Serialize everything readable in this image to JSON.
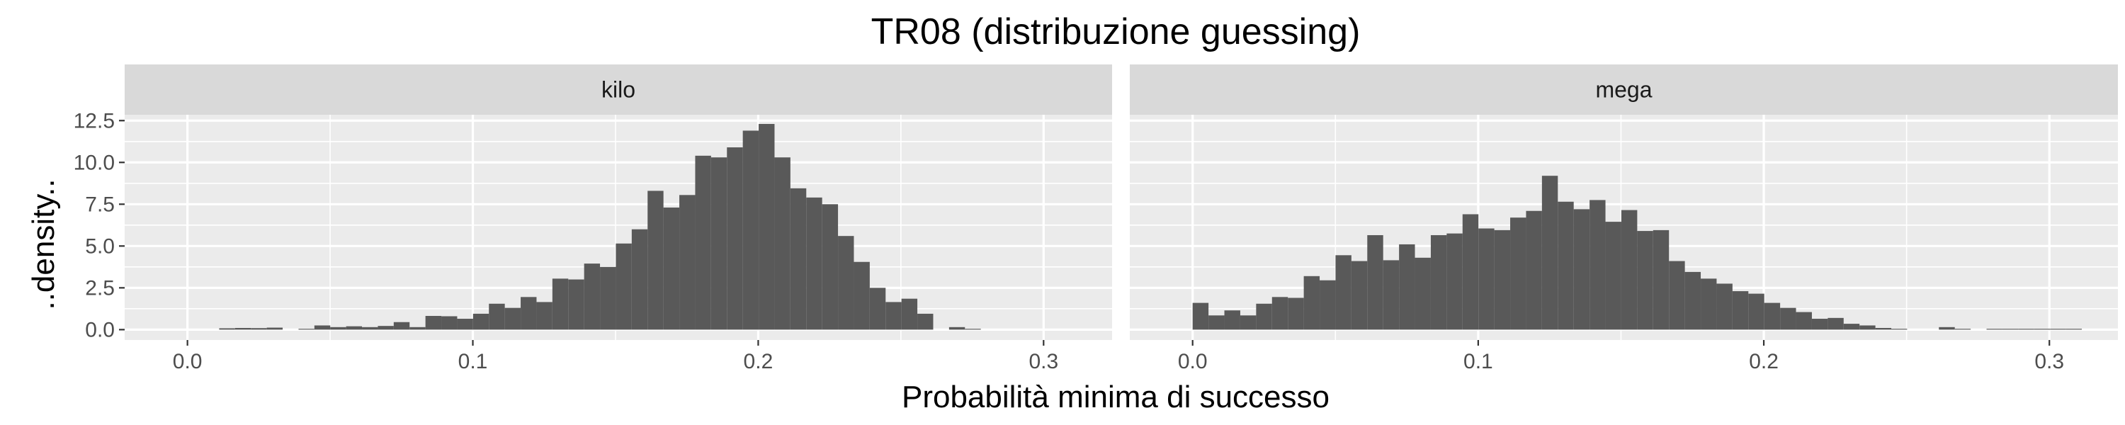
{
  "chart_data": {
    "type": "bar",
    "title": "TR08 (distribuzione guessing)",
    "xlabel": "Probabilità minima di successo",
    "ylabel": "..density..",
    "xlim": [
      -0.022,
      0.324
    ],
    "ylim": [
      -0.62,
      12.85
    ],
    "x_ticks": [
      "0.0",
      "0.1",
      "0.2",
      "0.3"
    ],
    "x_tick_values": [
      0,
      0.1,
      0.2,
      0.3
    ],
    "y_ticks": [
      "0.0",
      "2.5",
      "5.0",
      "7.5",
      "10.0",
      "12.5"
    ],
    "y_tick_values": [
      0,
      2.5,
      5,
      7.5,
      10,
      12.5
    ],
    "grid": true,
    "colors": {
      "bar": "#595959",
      "panel": "#ebebeb",
      "strip": "#d9d9d9",
      "grid": "#ffffff"
    },
    "bin_width": 0.00556,
    "panels": [
      {
        "name": "kilo",
        "bin_start": 0.0,
        "values": [
          0,
          0,
          0.08,
          0.1,
          0.09,
          0.12,
          0,
          0.05,
          0.25,
          0.15,
          0.2,
          0.15,
          0.22,
          0.45,
          0.15,
          0.82,
          0.8,
          0.65,
          0.95,
          1.55,
          1.3,
          1.95,
          1.65,
          3.05,
          3.0,
          3.95,
          3.75,
          5.15,
          6.0,
          8.3,
          7.3,
          8.05,
          10.4,
          10.3,
          10.9,
          11.9,
          12.3,
          10.3,
          8.45,
          7.9,
          7.5,
          5.6,
          4.05,
          2.5,
          1.65,
          1.85,
          0.95,
          0,
          0.15,
          0.05
        ]
      },
      {
        "name": "mega",
        "bin_start": 0.0,
        "values": [
          1.6,
          0.85,
          1.15,
          0.85,
          1.55,
          1.95,
          1.9,
          3.2,
          2.95,
          4.45,
          4.1,
          5.65,
          4.15,
          5.1,
          4.3,
          5.65,
          5.75,
          6.9,
          6.05,
          5.95,
          6.7,
          7.1,
          9.2,
          7.65,
          7.2,
          7.75,
          6.45,
          7.15,
          5.9,
          5.95,
          4.1,
          3.45,
          3.05,
          2.75,
          2.3,
          2.15,
          1.6,
          1.3,
          1.05,
          0.65,
          0.7,
          0.35,
          0.25,
          0.1,
          0.05,
          0,
          0,
          0.15,
          0.05,
          0,
          0.05,
          0.05,
          0.05,
          0.05,
          0.05,
          0.05
        ]
      }
    ]
  }
}
